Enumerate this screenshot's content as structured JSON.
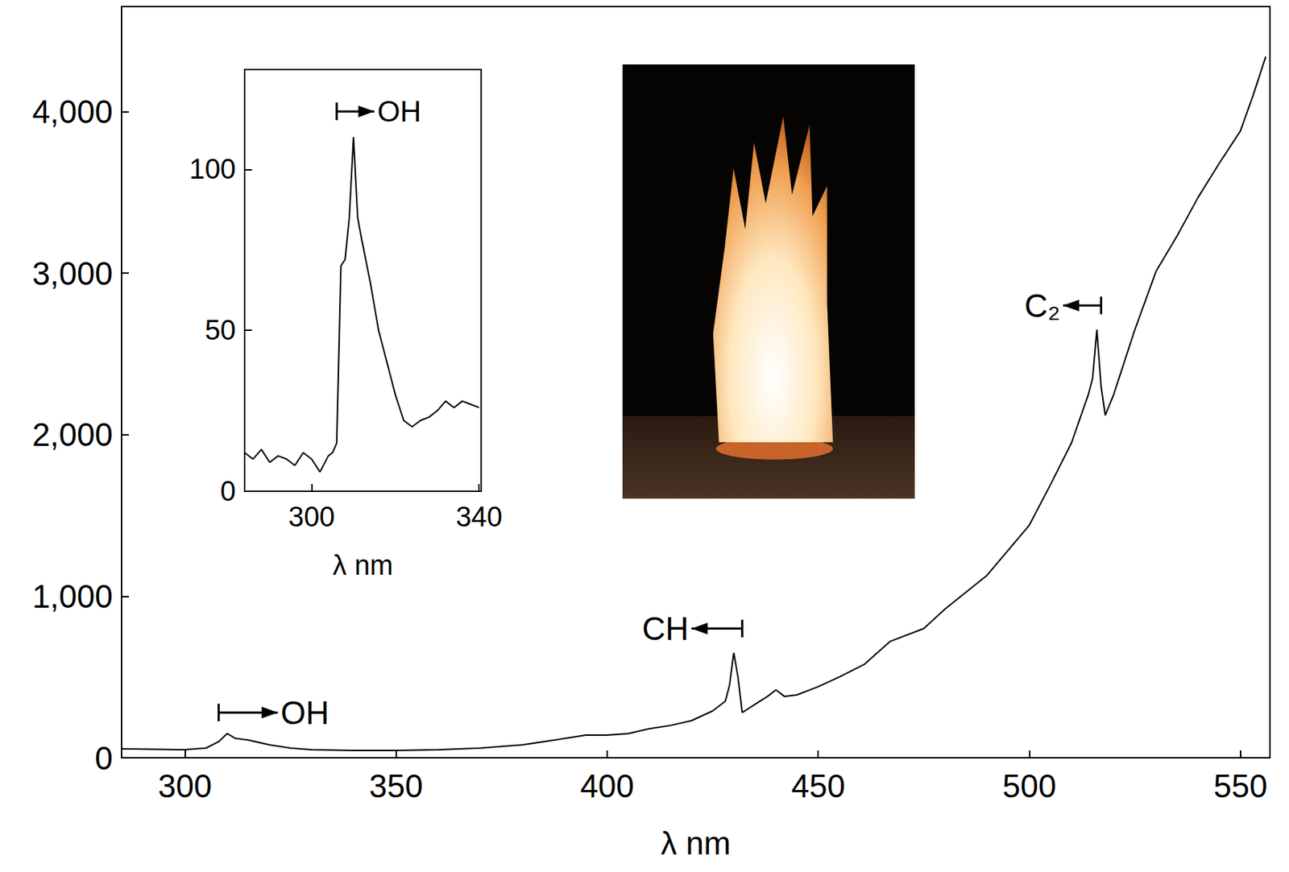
{
  "chart_data": [
    {
      "type": "line",
      "x_label": "λ nm",
      "color": "#000000",
      "xlim": [
        285,
        557
      ],
      "ylim": [
        0,
        4650
      ],
      "xticks": [
        300,
        350,
        400,
        450,
        500,
        550
      ],
      "yticks": [
        0,
        1000,
        2000,
        3000,
        4000
      ],
      "x": [
        285,
        300,
        305,
        308,
        310,
        312,
        315,
        320,
        325,
        330,
        340,
        350,
        360,
        370,
        380,
        390,
        395,
        400,
        405,
        410,
        415,
        420,
        425,
        428,
        429,
        430,
        431,
        432,
        435,
        438,
        440,
        442,
        445,
        450,
        455,
        461,
        467,
        475,
        480,
        490,
        500,
        505,
        510,
        512,
        514,
        515,
        516,
        517,
        518,
        520,
        525,
        530,
        535,
        540,
        545,
        550,
        553,
        556
      ],
      "values": [
        55,
        50,
        60,
        100,
        150,
        120,
        110,
        80,
        60,
        50,
        45,
        45,
        50,
        60,
        80,
        120,
        140,
        140,
        150,
        180,
        200,
        230,
        290,
        350,
        450,
        650,
        500,
        280,
        330,
        380,
        420,
        380,
        390,
        440,
        500,
        580,
        720,
        800,
        920,
        1130,
        1440,
        1690,
        1950,
        2100,
        2250,
        2350,
        2650,
        2300,
        2120,
        2250,
        2650,
        3010,
        3230,
        3470,
        3680,
        3880,
        4100,
        4340
      ],
      "annotations": [
        {
          "text": "OH",
          "x": [
            308,
            322
          ],
          "y": 280,
          "direction": "right"
        },
        {
          "text": "CH",
          "x": [
            432,
            420
          ],
          "y": 800,
          "direction": "left"
        },
        {
          "text": "C₂",
          "x": [
            517,
            508
          ],
          "y": 2800,
          "direction": "left"
        }
      ]
    },
    {
      "type": "line",
      "x_label": "λ nm",
      "color": "#000000",
      "xlim": [
        284,
        340.5
      ],
      "ylim": [
        0,
        131
      ],
      "xticks": [
        300,
        340
      ],
      "yticks": [
        0,
        50,
        100
      ],
      "x": [
        284,
        286,
        288,
        290,
        292,
        294,
        296,
        298,
        300,
        302,
        304,
        305,
        306,
        307,
        308,
        309,
        310,
        311,
        312,
        314,
        316,
        318,
        320,
        322,
        324,
        326,
        328,
        330,
        332,
        334,
        336,
        338,
        340
      ],
      "values": [
        12,
        10,
        13,
        9,
        11,
        10,
        8,
        12,
        10,
        6,
        11,
        12,
        15,
        70,
        72,
        85,
        110,
        85,
        78,
        65,
        50,
        40,
        30,
        22,
        20,
        22,
        23,
        25,
        28,
        26,
        28,
        27,
        26
      ],
      "annotations": [
        {
          "text": "OH",
          "x": [
            306,
            315
          ],
          "y": 118,
          "direction": "right"
        }
      ]
    }
  ]
}
